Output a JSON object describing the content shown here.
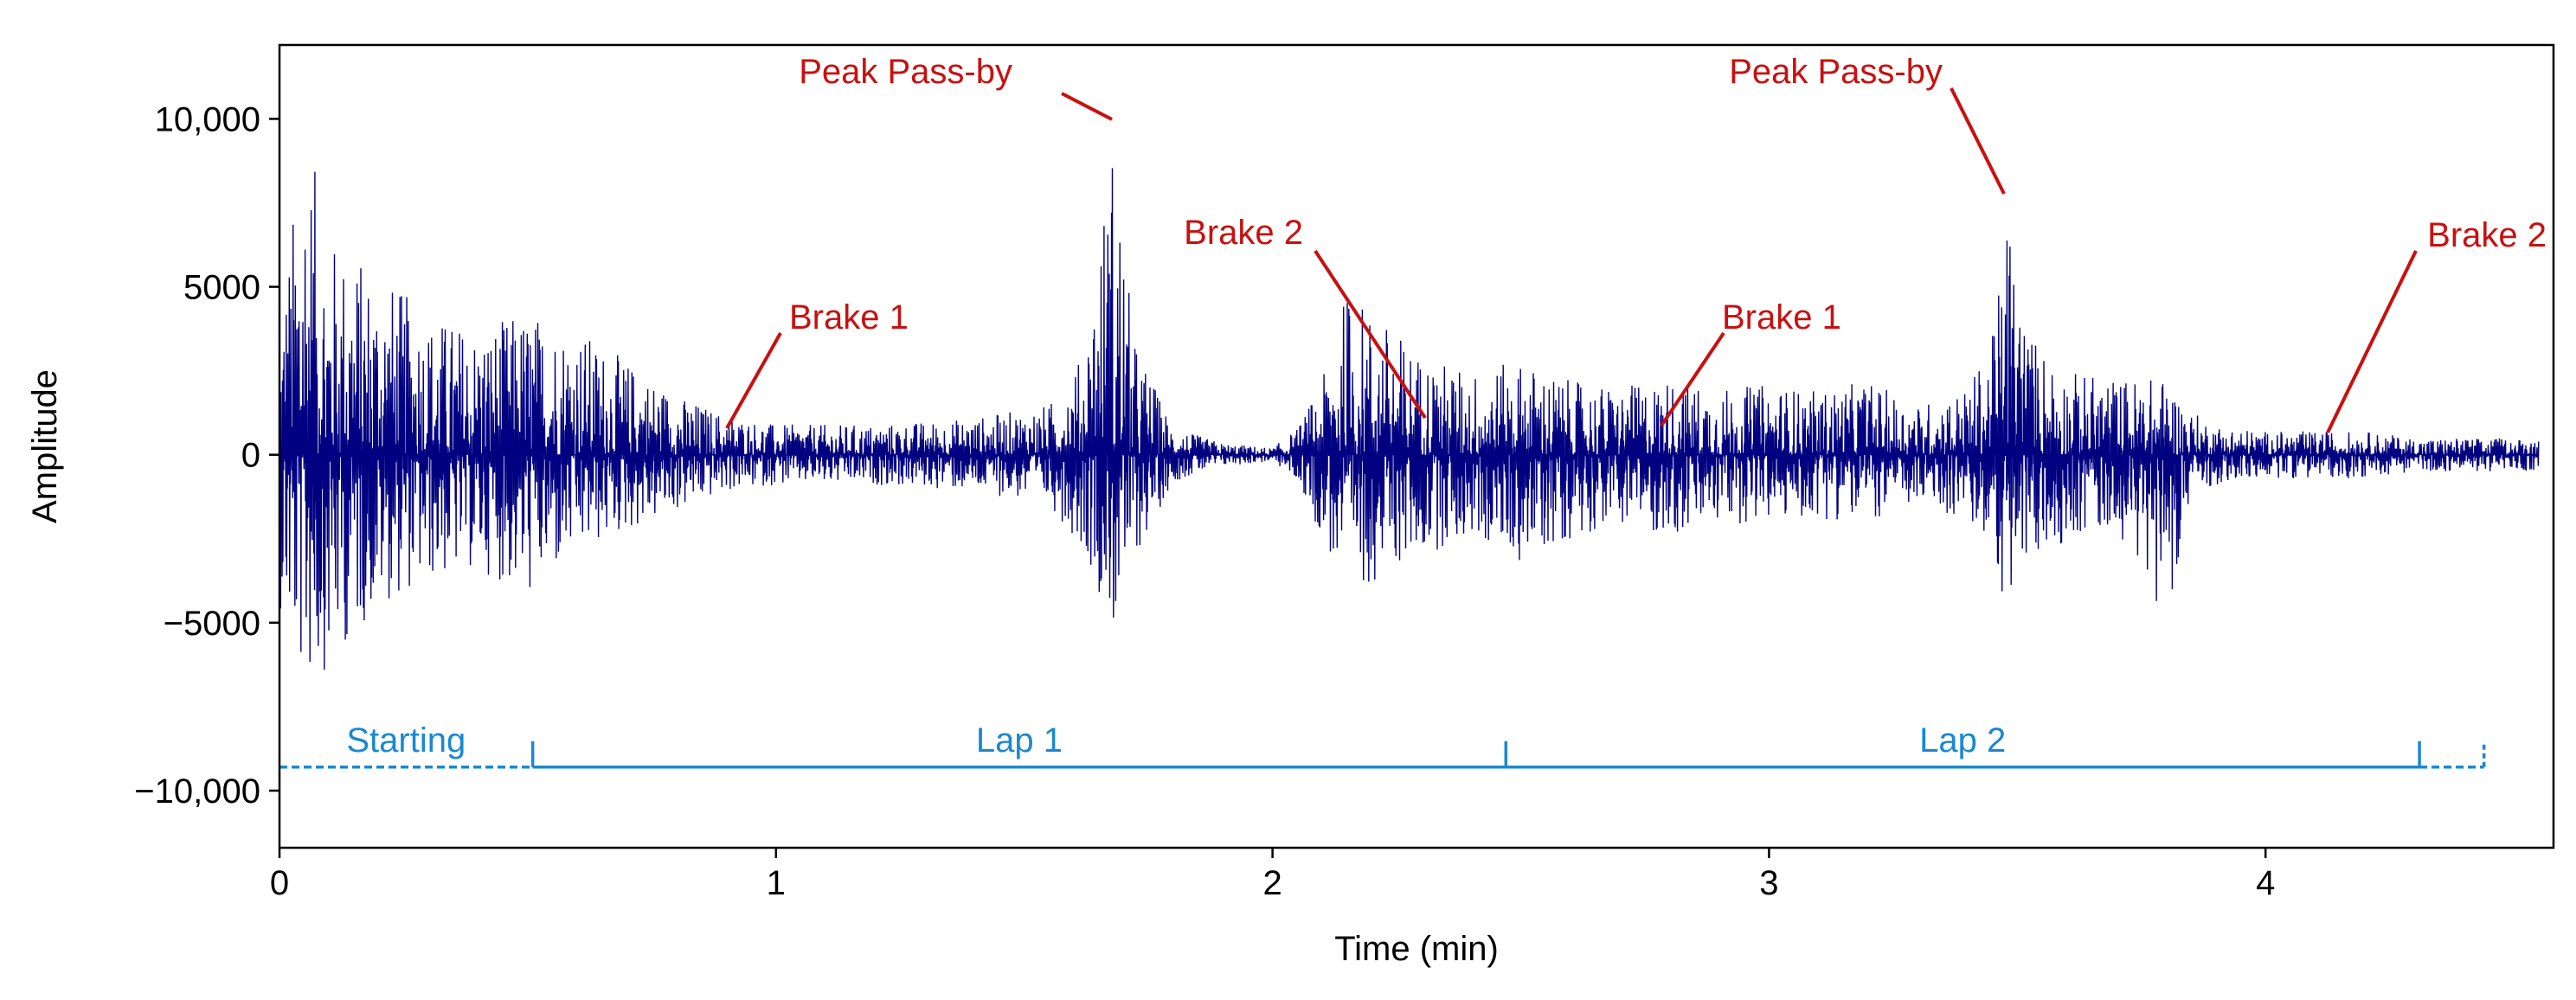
{
  "chart_data": {
    "type": "line",
    "title": "",
    "xlabel": "Time (min)",
    "ylabel": "Amplitude",
    "xlim": [
      0,
      4.58
    ],
    "ylim": [
      -11700,
      12200
    ],
    "x_ticks": [
      0,
      1,
      2,
      3,
      4
    ],
    "x_tick_labels": [
      "0",
      "1",
      "2",
      "3",
      "4"
    ],
    "y_ticks": [
      10000,
      5000,
      0,
      -5000,
      -10000
    ],
    "y_tick_labels": [
      "10,000",
      "5000",
      "0",
      "−5000",
      "−10,000"
    ],
    "grid": false,
    "colors": {
      "signal": "#000080",
      "annotation": "#c81010",
      "lap_line": "#1a88d0",
      "axes": "#000000"
    },
    "series": [
      {
        "x": [
          0,
          0.05,
          0.1,
          0.2,
          0.3,
          0.4,
          0.5,
          0.6,
          0.7,
          0.8,
          0.9,
          1.0,
          1.2,
          1.4,
          1.55,
          1.62,
          1.68,
          1.72,
          1.8,
          1.9,
          2.0,
          2.05,
          2.1,
          2.15,
          2.3,
          2.4,
          2.5,
          2.6,
          2.7,
          2.8,
          2.9,
          3.0,
          3.1,
          3.2,
          3.3,
          3.4,
          3.45,
          3.48,
          3.52,
          3.6,
          3.7,
          3.8,
          3.85,
          3.9,
          4.0,
          4.1,
          4.2,
          4.3,
          4.4,
          4.5,
          4.55
        ],
        "upper": [
          4000,
          10000,
          6500,
          5500,
          4200,
          3800,
          4300,
          3800,
          2800,
          1800,
          1200,
          900,
          900,
          1100,
          1500,
          3000,
          9800,
          3500,
          800,
          350,
          200,
          800,
          2200,
          5000,
          3000,
          2500,
          2800,
          2200,
          2000,
          2300,
          2000,
          2100,
          1900,
          2200,
          1500,
          2000,
          3500,
          7600,
          3800,
          2500,
          2300,
          2300,
          1300,
          900,
          700,
          700,
          700,
          500,
          500,
          500,
          500
        ],
        "lower": [
          -4500,
          -7000,
          -6300,
          -4500,
          -3800,
          -3400,
          -4300,
          -3000,
          -2300,
          -1700,
          -1100,
          -900,
          -900,
          -1100,
          -1500,
          -2800,
          -5300,
          -3200,
          -800,
          -350,
          -200,
          -800,
          -2500,
          -4200,
          -3000,
          -2500,
          -3200,
          -2500,
          -2000,
          -2500,
          -2100,
          -2000,
          -1900,
          -2000,
          -1500,
          -2000,
          -3000,
          -4800,
          -3500,
          -2500,
          -2200,
          -4900,
          -1300,
          -900,
          -700,
          -700,
          -700,
          -500,
          -500,
          -500,
          -500
        ]
      }
    ],
    "annotations": [
      {
        "text": "Peak Pass-by",
        "x": 1.68,
        "y": 9800
      },
      {
        "text": "Brake 1",
        "x": 0.88,
        "y": 800
      },
      {
        "text": "Brake 2",
        "x": 2.3,
        "y": 1000
      },
      {
        "text": "Brake 1",
        "x": 2.76,
        "y": 800
      },
      {
        "text": "Peak Pass-by",
        "x": 3.48,
        "y": 7600
      },
      {
        "text": "Brake 2",
        "x": 4.1,
        "y": 600
      }
    ],
    "lap_segments": [
      {
        "label": "Starting",
        "x0": 0.0,
        "x1": 0.51,
        "style": "dashed"
      },
      {
        "label": "Lap 1",
        "x0": 0.51,
        "x1": 2.47,
        "style": "solid"
      },
      {
        "label": "Lap 2",
        "x0": 2.47,
        "x1": 4.31,
        "style": "solid"
      },
      {
        "label": "",
        "x0": 4.31,
        "x1": 4.44,
        "style": "dashed"
      }
    ],
    "lap_line_y": -9300
  }
}
